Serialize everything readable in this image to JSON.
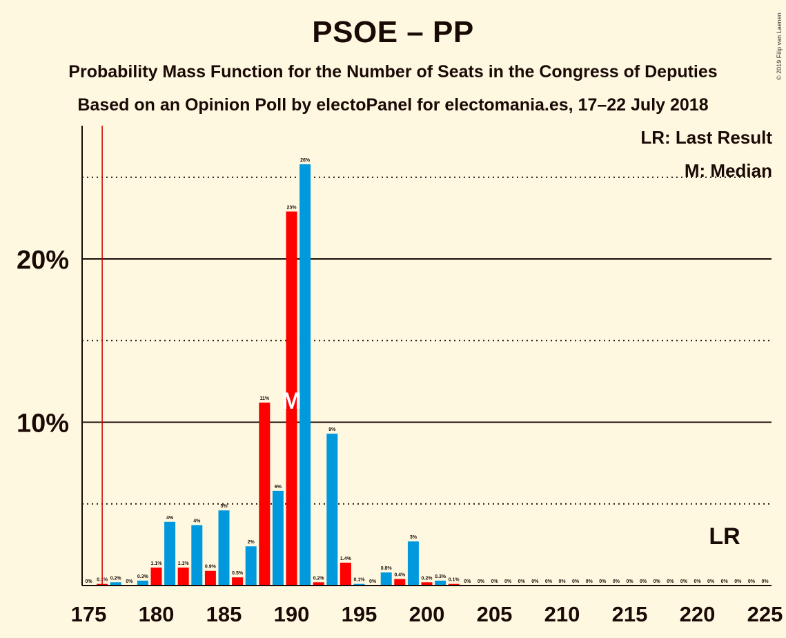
{
  "header": {
    "title": "PSOE – PP",
    "subtitle": "Probability Mass Function for the Number of Seats in the Congress of Deputies",
    "source": "Based on an Opinion Poll by electoPanel for electomania.es, 17–22 July 2018",
    "copyright": "© 2019 Filip van Laenen"
  },
  "legend": {
    "last_result": "LR: Last Result",
    "median": "M: Median"
  },
  "markers": {
    "median_label": "M",
    "lr_label": "LR",
    "median_seat": 190,
    "last_result_seat": 176
  },
  "colors": {
    "background": "#FFF8E1",
    "red": "#FF0000",
    "blue": "#0099DD",
    "lr_line": "#CC0000",
    "text": "#1a0a06"
  },
  "chart_data": {
    "type": "bar",
    "xlim": [
      175,
      225
    ],
    "ylim": [
      0,
      28
    ],
    "x_ticks": [
      175,
      180,
      185,
      190,
      195,
      200,
      205,
      210,
      215,
      220,
      225
    ],
    "y_ticks_major": [
      {
        "value": 10,
        "label": "10%"
      },
      {
        "value": 20,
        "label": "20%"
      }
    ],
    "y_ticks_minor": [
      5,
      15,
      25
    ],
    "grid": true,
    "bars": [
      {
        "seat": 176,
        "value": 0.1,
        "label": "0.1%",
        "color": "red"
      },
      {
        "seat": 177,
        "value": 0.2,
        "label": "0.2%",
        "color": "blue"
      },
      {
        "seat": 178,
        "value": 0.0,
        "label": "0%",
        "color": "red"
      },
      {
        "seat": 179,
        "value": 0.3,
        "label": "0.3%",
        "color": "blue"
      },
      {
        "seat": 180,
        "value": 1.1,
        "label": "1.1%",
        "color": "red"
      },
      {
        "seat": 181,
        "value": 3.9,
        "label": "4%",
        "color": "blue"
      },
      {
        "seat": 182,
        "value": 1.1,
        "label": "1.1%",
        "color": "red"
      },
      {
        "seat": 183,
        "value": 3.7,
        "label": "4%",
        "color": "blue"
      },
      {
        "seat": 184,
        "value": 0.9,
        "label": "0.9%",
        "color": "red"
      },
      {
        "seat": 185,
        "value": 4.6,
        "label": "5%",
        "color": "blue"
      },
      {
        "seat": 186,
        "value": 0.5,
        "label": "0.5%",
        "color": "red"
      },
      {
        "seat": 187,
        "value": 2.4,
        "label": "2%",
        "color": "blue"
      },
      {
        "seat": 188,
        "value": 11.2,
        "label": "11%",
        "color": "red"
      },
      {
        "seat": 189,
        "value": 5.8,
        "label": "6%",
        "color": "blue"
      },
      {
        "seat": 190,
        "value": 22.9,
        "label": "23%",
        "color": "red"
      },
      {
        "seat": 191,
        "value": 25.8,
        "label": "26%",
        "color": "blue"
      },
      {
        "seat": 192,
        "value": 0.2,
        "label": "0.2%",
        "color": "red"
      },
      {
        "seat": 193,
        "value": 9.3,
        "label": "9%",
        "color": "blue"
      },
      {
        "seat": 194,
        "value": 1.4,
        "label": "1.4%",
        "color": "red"
      },
      {
        "seat": 195,
        "value": 0.1,
        "label": "0.1%",
        "color": "blue"
      },
      {
        "seat": 196,
        "value": 0.0,
        "label": "0%",
        "color": "red"
      },
      {
        "seat": 197,
        "value": 0.8,
        "label": "0.8%",
        "color": "blue"
      },
      {
        "seat": 198,
        "value": 0.4,
        "label": "0.4%",
        "color": "red"
      },
      {
        "seat": 199,
        "value": 2.7,
        "label": "3%",
        "color": "blue"
      },
      {
        "seat": 200,
        "value": 0.2,
        "label": "0.2%",
        "color": "red"
      },
      {
        "seat": 201,
        "value": 0.3,
        "label": "0.3%",
        "color": "blue"
      },
      {
        "seat": 202,
        "value": 0.1,
        "label": "0.1%",
        "color": "red"
      },
      {
        "seat": 203,
        "value": 0.0,
        "label": "0%",
        "color": "blue"
      },
      {
        "seat": 204,
        "value": 0.0,
        "label": "0%",
        "color": "red"
      },
      {
        "seat": 205,
        "value": 0.0,
        "label": "0%",
        "color": "blue"
      },
      {
        "seat": 206,
        "value": 0.0,
        "label": "0%",
        "color": "red"
      },
      {
        "seat": 207,
        "value": 0.0,
        "label": "0%",
        "color": "blue"
      },
      {
        "seat": 208,
        "value": 0.0,
        "label": "0%",
        "color": "red"
      },
      {
        "seat": 209,
        "value": 0.0,
        "label": "0%",
        "color": "blue"
      },
      {
        "seat": 210,
        "value": 0.0,
        "label": "0%",
        "color": "red"
      },
      {
        "seat": 211,
        "value": 0.0,
        "label": "0%",
        "color": "blue"
      },
      {
        "seat": 212,
        "value": 0.0,
        "label": "0%",
        "color": "red"
      },
      {
        "seat": 213,
        "value": 0.0,
        "label": "0%",
        "color": "blue"
      },
      {
        "seat": 214,
        "value": 0.0,
        "label": "0%",
        "color": "red"
      },
      {
        "seat": 215,
        "value": 0.0,
        "label": "0%",
        "color": "blue"
      },
      {
        "seat": 216,
        "value": 0.0,
        "label": "0%",
        "color": "red"
      },
      {
        "seat": 217,
        "value": 0.0,
        "label": "0%",
        "color": "blue"
      },
      {
        "seat": 218,
        "value": 0.0,
        "label": "0%",
        "color": "red"
      },
      {
        "seat": 219,
        "value": 0.0,
        "label": "0%",
        "color": "blue"
      },
      {
        "seat": 220,
        "value": 0.0,
        "label": "0%",
        "color": "red"
      },
      {
        "seat": 221,
        "value": 0.0,
        "label": "0%",
        "color": "blue"
      },
      {
        "seat": 222,
        "value": 0.0,
        "label": "0%",
        "color": "red"
      },
      {
        "seat": 223,
        "value": 0.0,
        "label": "0%",
        "color": "blue"
      },
      {
        "seat": 224,
        "value": 0.0,
        "label": "0%",
        "color": "red"
      },
      {
        "seat": 225,
        "value": 0.0,
        "label": "0%",
        "color": "blue"
      }
    ],
    "extra_labels": [
      {
        "seat": 175,
        "label": "0%"
      }
    ]
  }
}
